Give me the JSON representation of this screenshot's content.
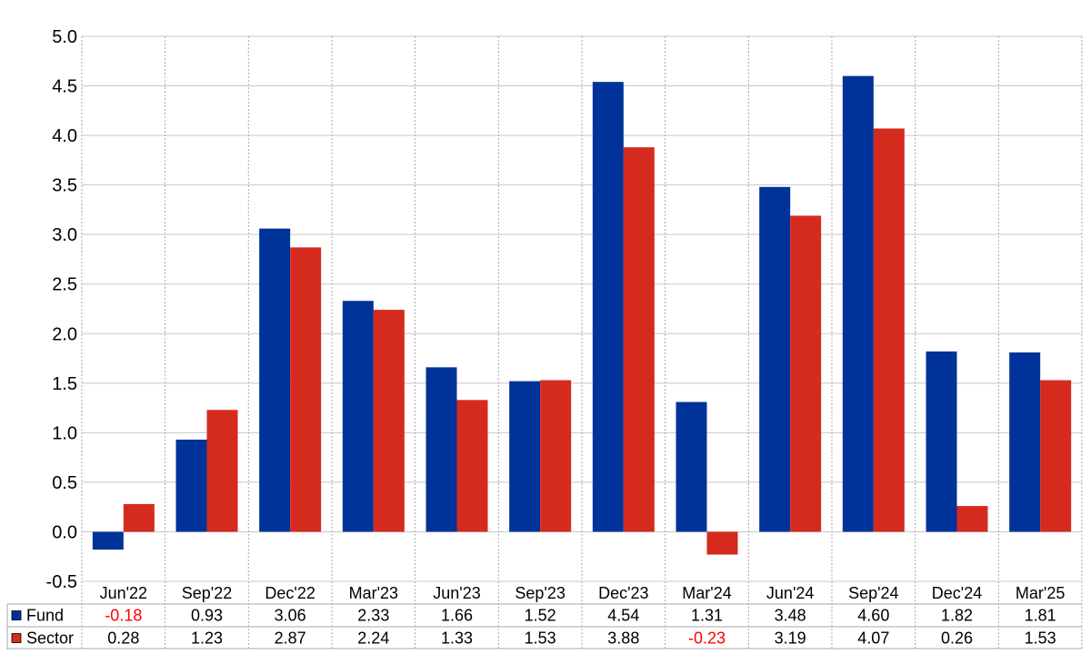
{
  "chart_data": {
    "type": "bar",
    "categories": [
      "Jun'22",
      "Sep'22",
      "Dec'22",
      "Mar'23",
      "Jun'23",
      "Sep'23",
      "Dec'23",
      "Mar'24",
      "Jun'24",
      "Sep'24",
      "Dec'24",
      "Mar'25"
    ],
    "series": [
      {
        "name": "Fund",
        "color": "#003399",
        "values": [
          -0.18,
          0.93,
          3.06,
          2.33,
          1.66,
          1.52,
          4.54,
          1.31,
          3.48,
          4.6,
          1.82,
          1.81
        ],
        "labels": [
          "-0.18",
          "0.93",
          "3.06",
          "2.33",
          "1.66",
          "1.52",
          "4.54",
          "1.31",
          "3.48",
          "4.60",
          "1.82",
          "1.81"
        ]
      },
      {
        "name": "Sector",
        "color": "#d52b1e",
        "values": [
          0.28,
          1.23,
          2.87,
          2.24,
          1.33,
          1.53,
          3.88,
          -0.23,
          3.19,
          4.07,
          0.26,
          1.53
        ],
        "labels": [
          "0.28",
          "1.23",
          "2.87",
          "2.24",
          "1.33",
          "1.53",
          "3.88",
          "-0.23",
          "3.19",
          "4.07",
          "0.26",
          "1.53"
        ]
      }
    ],
    "yticks": [
      "5.0",
      "4.5",
      "4.0",
      "3.5",
      "3.0",
      "2.5",
      "2.0",
      "1.5",
      "1.0",
      "0.5",
      "0.0",
      "-0.5"
    ],
    "ylim": [
      -0.5,
      5.0
    ],
    "grid": true,
    "legend": "data-table-below",
    "negative_label_color": "#ff0000",
    "title": "",
    "xlabel": "",
    "ylabel": ""
  }
}
